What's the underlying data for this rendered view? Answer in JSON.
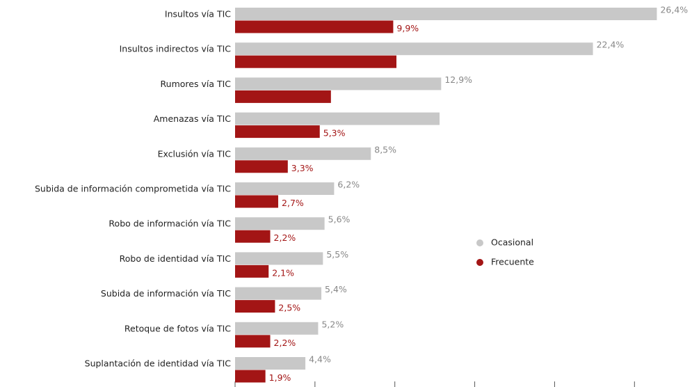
{
  "chart_data": {
    "type": "bar",
    "orientation": "horizontal",
    "categories": [
      "Insultos vía TIC",
      "Insultos indirectos vía TIC",
      "Rumores vía TIC",
      "Amenazas vía TIC",
      "Exclusión vía TIC",
      "Subida de información comprometida vía TIC",
      "Robo de información vía TIC",
      "Robo de identidad vía TIC",
      "Subida de información vía TIC",
      "Retoque de fotos vía TIC",
      "Suplantación de identidad vía TIC"
    ],
    "series": [
      {
        "name": "Ocasional",
        "color": "#c8c8c8",
        "values": [
          26.4,
          22.4,
          12.9,
          12.8,
          8.5,
          6.2,
          5.6,
          5.5,
          5.4,
          5.2,
          4.4
        ],
        "value_labels": [
          "26,4%",
          "22,4%",
          "12,9%",
          null,
          "8,5%",
          "6,2%",
          "5,6%",
          "5,5%",
          "5,4%",
          "5,2%",
          "4,4%"
        ]
      },
      {
        "name": "Frecuente",
        "color": "#a31515",
        "values": [
          9.9,
          10.1,
          6.0,
          5.3,
          3.3,
          2.7,
          2.2,
          2.1,
          2.5,
          2.2,
          1.9
        ],
        "value_labels": [
          "9,9%",
          null,
          null,
          "5,3%",
          "3,3%",
          "2,7%",
          "2,2%",
          "2,1%",
          "2,5%",
          "2,2%",
          "1,9%"
        ]
      }
    ],
    "xlim": [
      0,
      28.6
    ],
    "xticks": [
      0,
      5,
      10,
      15,
      20,
      25
    ]
  }
}
